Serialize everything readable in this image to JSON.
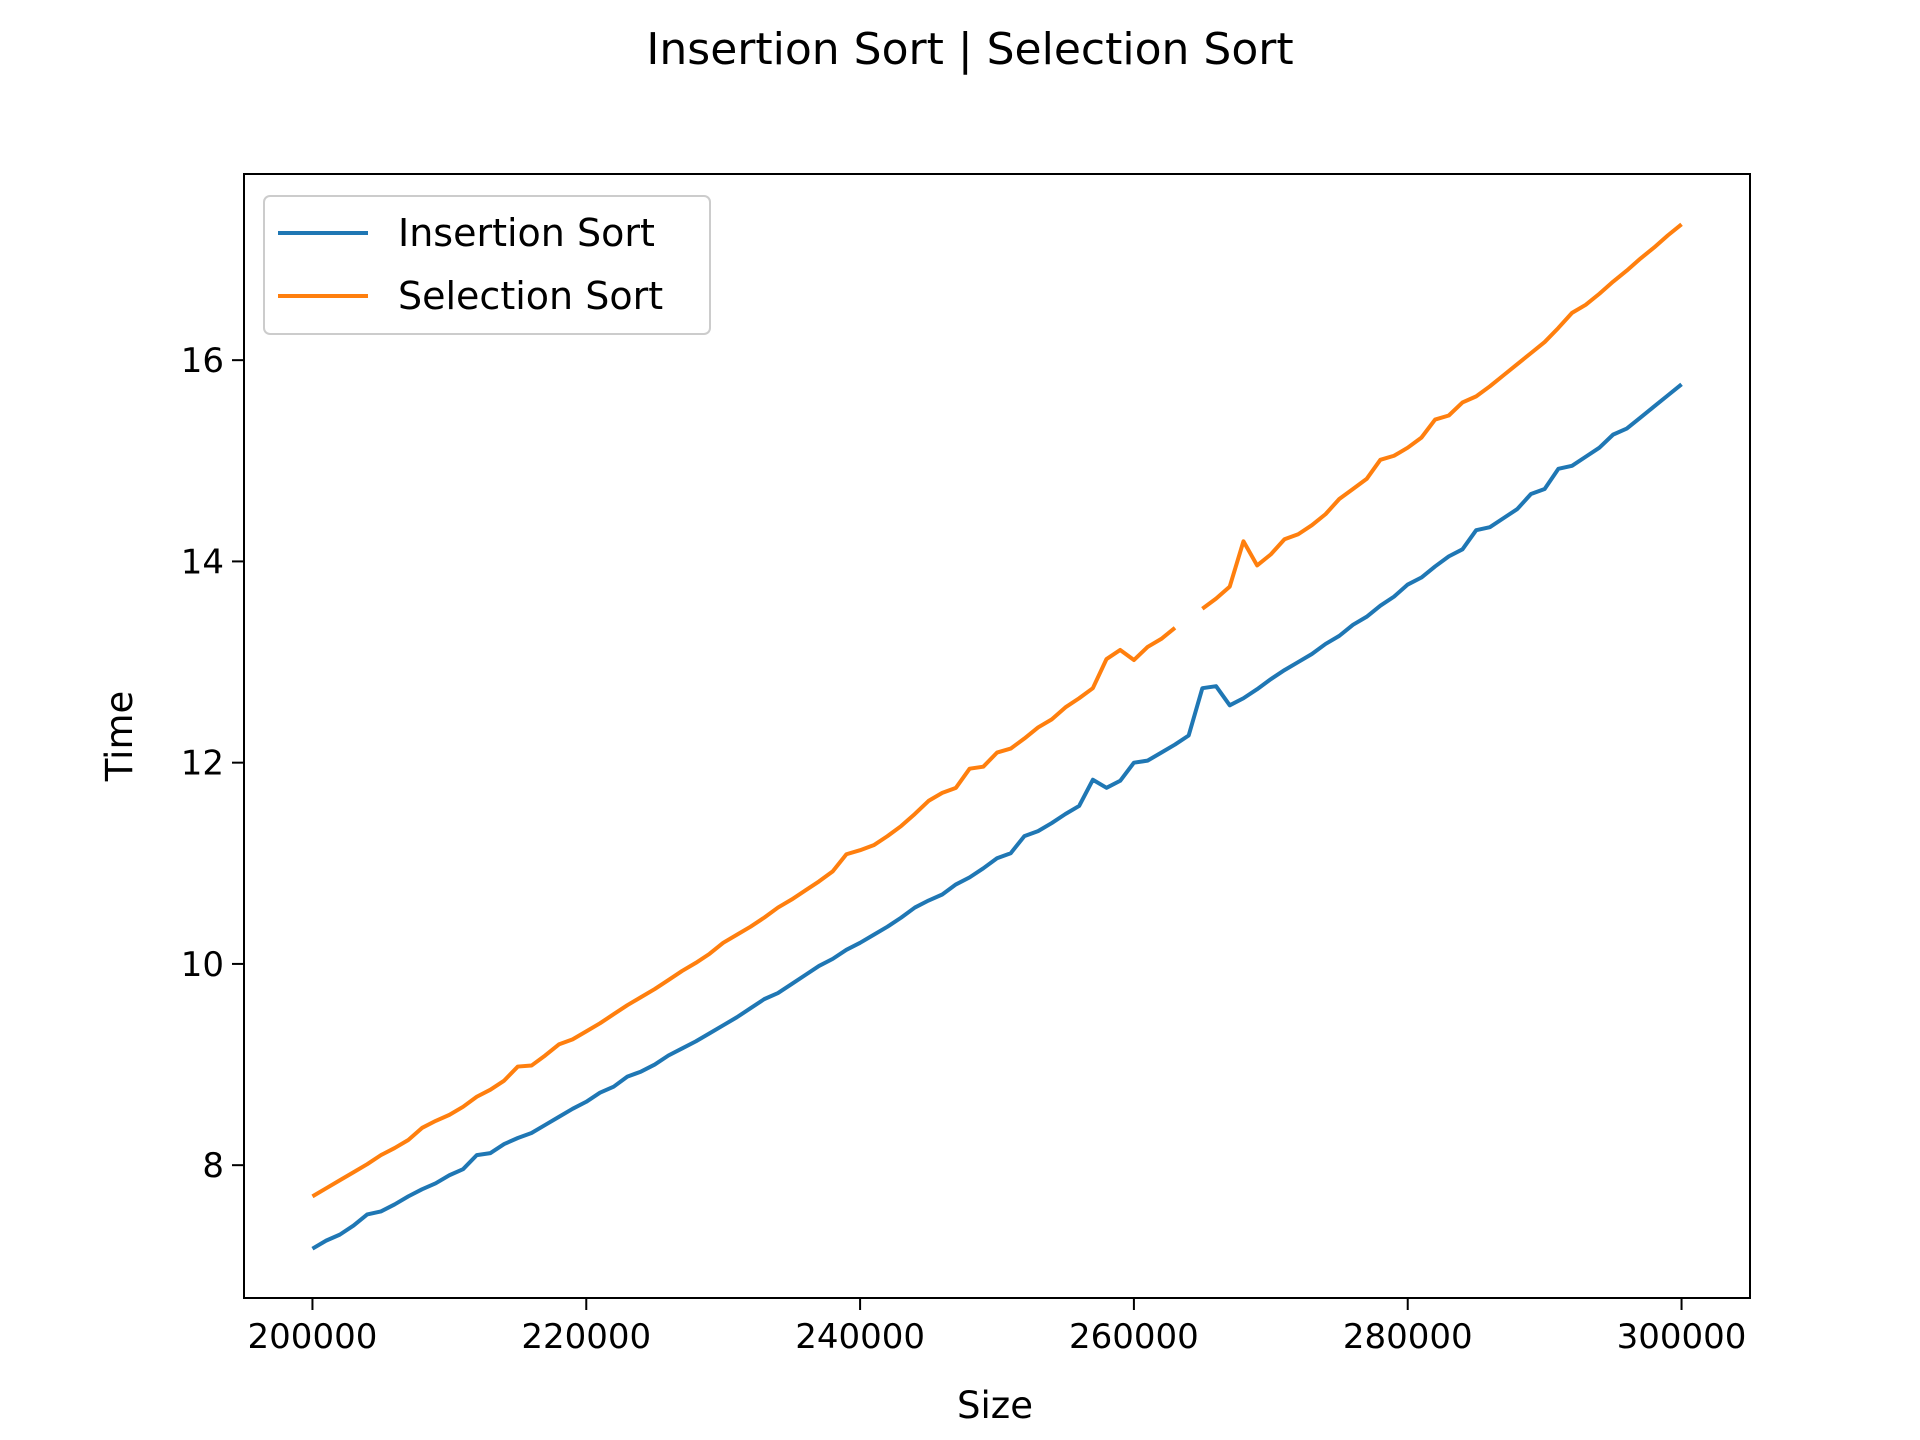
{
  "chart_data": {
    "type": "line",
    "title": "Insertion Sort | Selection Sort",
    "xlabel": "Size",
    "ylabel": "Time",
    "xlim": [
      195000,
      305000
    ],
    "ylim": [
      6.68,
      17.85
    ],
    "xticks": [
      200000,
      220000,
      240000,
      260000,
      280000,
      300000
    ],
    "yticks": [
      8,
      10,
      12,
      14,
      16
    ],
    "grid": false,
    "legend_position": "top-left",
    "series": [
      {
        "name": "Insertion Sort",
        "color": "#1f77b4",
        "points": [
          [
            200000,
            7.17
          ],
          [
            201000,
            7.25
          ],
          [
            202000,
            7.31
          ],
          [
            203000,
            7.4
          ],
          [
            204000,
            7.51
          ],
          [
            205000,
            7.54
          ],
          [
            206000,
            7.61
          ],
          [
            207000,
            7.69
          ],
          [
            208000,
            7.76
          ],
          [
            209000,
            7.82
          ],
          [
            210000,
            7.9
          ],
          [
            211000,
            7.96
          ],
          [
            212000,
            8.1
          ],
          [
            213000,
            8.12
          ],
          [
            214000,
            8.21
          ],
          [
            215000,
            8.27
          ],
          [
            216000,
            8.32
          ],
          [
            217000,
            8.4
          ],
          [
            218000,
            8.48
          ],
          [
            219000,
            8.56
          ],
          [
            220000,
            8.63
          ],
          [
            221000,
            8.72
          ],
          [
            222000,
            8.78
          ],
          [
            223000,
            8.88
          ],
          [
            224000,
            8.93
          ],
          [
            225000,
            9.0
          ],
          [
            226000,
            9.09
          ],
          [
            227000,
            9.16
          ],
          [
            228000,
            9.23
          ],
          [
            229000,
            9.31
          ],
          [
            230000,
            9.39
          ],
          [
            231000,
            9.47
          ],
          [
            232000,
            9.56
          ],
          [
            233000,
            9.65
          ],
          [
            234000,
            9.71
          ],
          [
            235000,
            9.8
          ],
          [
            236000,
            9.89
          ],
          [
            237000,
            9.98
          ],
          [
            238000,
            10.05
          ],
          [
            239000,
            10.14
          ],
          [
            240000,
            10.21
          ],
          [
            241000,
            10.29
          ],
          [
            242000,
            10.37
          ],
          [
            243000,
            10.46
          ],
          [
            244000,
            10.56
          ],
          [
            245000,
            10.63
          ],
          [
            246000,
            10.69
          ],
          [
            247000,
            10.79
          ],
          [
            248000,
            10.86
          ],
          [
            249000,
            10.95
          ],
          [
            250000,
            11.05
          ],
          [
            251000,
            11.1
          ],
          [
            252000,
            11.27
          ],
          [
            253000,
            11.32
          ],
          [
            254000,
            11.4
          ],
          [
            255000,
            11.49
          ],
          [
            256000,
            11.57
          ],
          [
            257000,
            11.83
          ],
          [
            258000,
            11.75
          ],
          [
            259000,
            11.82
          ],
          [
            260000,
            12.0
          ],
          [
            261000,
            12.02
          ],
          [
            262000,
            12.1
          ],
          [
            263000,
            12.18
          ],
          [
            264000,
            12.27
          ],
          [
            265000,
            12.74
          ],
          [
            266000,
            12.76
          ],
          [
            267000,
            12.57
          ],
          [
            268000,
            12.64
          ],
          [
            269000,
            12.73
          ],
          [
            270000,
            12.83
          ],
          [
            271000,
            12.92
          ],
          [
            272000,
            13.0
          ],
          [
            273000,
            13.08
          ],
          [
            274000,
            13.18
          ],
          [
            275000,
            13.26
          ],
          [
            276000,
            13.37
          ],
          [
            277000,
            13.45
          ],
          [
            278000,
            13.56
          ],
          [
            279000,
            13.65
          ],
          [
            280000,
            13.77
          ],
          [
            281000,
            13.84
          ],
          [
            282000,
            13.95
          ],
          [
            283000,
            14.05
          ],
          [
            284000,
            14.12
          ],
          [
            285000,
            14.31
          ],
          [
            286000,
            14.34
          ],
          [
            287000,
            14.43
          ],
          [
            288000,
            14.52
          ],
          [
            289000,
            14.67
          ],
          [
            290000,
            14.72
          ],
          [
            291000,
            14.92
          ],
          [
            292000,
            14.95
          ],
          [
            293000,
            15.04
          ],
          [
            294000,
            15.13
          ],
          [
            295000,
            15.26
          ],
          [
            296000,
            15.32
          ],
          [
            297000,
            15.43
          ],
          [
            298000,
            15.54
          ],
          [
            299000,
            15.65
          ],
          [
            300000,
            15.76
          ]
        ]
      },
      {
        "name": "Selection Sort",
        "color": "#ff7f0e",
        "points": [
          [
            200000,
            7.69
          ],
          [
            201000,
            7.77
          ],
          [
            202000,
            7.85
          ],
          [
            203000,
            7.93
          ],
          [
            204000,
            8.01
          ],
          [
            205000,
            8.1
          ],
          [
            206000,
            8.17
          ],
          [
            207000,
            8.25
          ],
          [
            208000,
            8.37
          ],
          [
            209000,
            8.44
          ],
          [
            210000,
            8.5
          ],
          [
            211000,
            8.58
          ],
          [
            212000,
            8.68
          ],
          [
            213000,
            8.75
          ],
          [
            214000,
            8.84
          ],
          [
            215000,
            8.98
          ],
          [
            216000,
            8.99
          ],
          [
            217000,
            9.09
          ],
          [
            218000,
            9.2
          ],
          [
            219000,
            9.25
          ],
          [
            220000,
            9.33
          ],
          [
            221000,
            9.41
          ],
          [
            222000,
            9.5
          ],
          [
            223000,
            9.59
          ],
          [
            224000,
            9.67
          ],
          [
            225000,
            9.75
          ],
          [
            226000,
            9.84
          ],
          [
            227000,
            9.93
          ],
          [
            228000,
            10.01
          ],
          [
            229000,
            10.1
          ],
          [
            230000,
            10.21
          ],
          [
            231000,
            10.29
          ],
          [
            232000,
            10.37
          ],
          [
            233000,
            10.46
          ],
          [
            234000,
            10.56
          ],
          [
            235000,
            10.64
          ],
          [
            236000,
            10.73
          ],
          [
            237000,
            10.82
          ],
          [
            238000,
            10.92
          ],
          [
            239000,
            11.09
          ],
          [
            240000,
            11.13
          ],
          [
            241000,
            11.18
          ],
          [
            242000,
            11.27
          ],
          [
            243000,
            11.37
          ],
          [
            244000,
            11.49
          ],
          [
            245000,
            11.62
          ],
          [
            246000,
            11.7
          ],
          [
            247000,
            11.75
          ],
          [
            248000,
            11.94
          ],
          [
            249000,
            11.96
          ],
          [
            250000,
            12.1
          ],
          [
            251000,
            12.14
          ],
          [
            252000,
            12.24
          ],
          [
            253000,
            12.35
          ],
          [
            254000,
            12.43
          ],
          [
            255000,
            12.55
          ],
          [
            256000,
            12.64
          ],
          [
            257000,
            12.74
          ],
          [
            258000,
            13.03
          ],
          [
            259000,
            13.12
          ],
          [
            260000,
            13.02
          ],
          [
            261000,
            13.15
          ],
          [
            262000,
            13.23
          ],
          [
            263000,
            13.34
          ],
          null,
          [
            265000,
            13.53
          ],
          [
            266000,
            13.63
          ],
          [
            267000,
            13.75
          ],
          [
            268000,
            14.2
          ],
          [
            269000,
            13.96
          ],
          [
            270000,
            14.07
          ],
          [
            271000,
            14.22
          ],
          [
            272000,
            14.27
          ],
          [
            273000,
            14.36
          ],
          [
            274000,
            14.47
          ],
          [
            275000,
            14.62
          ],
          [
            276000,
            14.72
          ],
          [
            277000,
            14.82
          ],
          [
            278000,
            15.01
          ],
          [
            279000,
            15.05
          ],
          [
            280000,
            15.13
          ],
          [
            281000,
            15.23
          ],
          [
            282000,
            15.41
          ],
          [
            283000,
            15.45
          ],
          [
            284000,
            15.58
          ],
          [
            285000,
            15.64
          ],
          [
            286000,
            15.74
          ],
          [
            287000,
            15.85
          ],
          [
            288000,
            15.96
          ],
          [
            289000,
            16.07
          ],
          [
            290000,
            16.18
          ],
          [
            291000,
            16.32
          ],
          [
            292000,
            16.47
          ],
          [
            293000,
            16.55
          ],
          [
            294000,
            16.66
          ],
          [
            295000,
            16.78
          ],
          [
            296000,
            16.89
          ],
          [
            297000,
            17.01
          ],
          [
            298000,
            17.12
          ],
          [
            299000,
            17.24
          ],
          [
            300000,
            17.35
          ]
        ]
      }
    ]
  }
}
